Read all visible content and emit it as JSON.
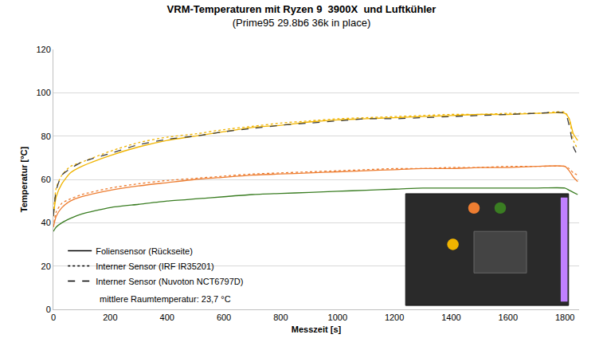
{
  "chart_data": {
    "type": "line",
    "title": "VRM-Temperaturen mit Ryzen 9  3900X  und Luftkühler",
    "subtitle": "(Prime95 29.8b6 36k in place)",
    "x_label": "Messzeit [s]",
    "y_label": "Temperatur [°C]",
    "x": [
      0,
      10,
      30,
      60,
      100,
      200,
      300,
      400,
      500,
      600,
      700,
      800,
      900,
      1000,
      1100,
      1200,
      1300,
      1400,
      1500,
      1600,
      1700,
      1800,
      1815,
      1830,
      1845
    ],
    "series": [
      {
        "color": "#f0b400",
        "line_style": "solid",
        "values": [
          43,
          52,
          58,
          63,
          66,
          71,
          75,
          78,
          80,
          82,
          84,
          85,
          86.5,
          87.5,
          88,
          88.5,
          89,
          89.5,
          90,
          90,
          90.5,
          90.5,
          88,
          81,
          78
        ]
      },
      {
        "color": "#f0b400",
        "line_style": "dotted",
        "values": [
          44,
          56,
          62,
          66,
          68,
          73,
          77,
          79.5,
          81,
          83,
          84.5,
          86,
          87,
          88,
          88.5,
          89,
          89.5,
          90,
          90,
          90.5,
          90.5,
          91,
          88,
          78,
          74
        ]
      },
      {
        "color": "#3c3c3c",
        "line_style": "dashed",
        "values": [
          43,
          55,
          62,
          65,
          68,
          72,
          76,
          78.5,
          80,
          82,
          83.5,
          85,
          86,
          87,
          88,
          88,
          88.5,
          89,
          89.5,
          90,
          90.5,
          90.5,
          85,
          75,
          71
        ]
      },
      {
        "color": "#ed7d31",
        "line_style": "solid",
        "values": [
          38,
          43,
          47,
          50,
          52,
          55,
          57,
          58.5,
          60,
          61,
          62,
          62.5,
          63,
          63.5,
          64,
          64.5,
          65,
          65,
          65.5,
          65.5,
          66,
          66,
          64,
          61,
          59
        ]
      },
      {
        "color": "#ed7d31",
        "line_style": "dotted",
        "values": [
          38,
          45,
          49,
          51,
          53,
          56,
          58,
          59.5,
          60.5,
          61.5,
          62.5,
          63,
          63.5,
          64,
          64.5,
          65,
          65,
          65.5,
          65.5,
          66,
          66,
          66,
          65,
          63,
          62
        ]
      },
      {
        "color": "#3a7d22",
        "line_style": "solid",
        "values": [
          36,
          38,
          40,
          42,
          44,
          47,
          48.5,
          50,
          51,
          52,
          53,
          53.5,
          54,
          54.5,
          55,
          55.5,
          56,
          56,
          56,
          56,
          56,
          56,
          55,
          54,
          53
        ]
      }
    ],
    "legend_items": [
      {
        "name": "Foliensensor (Rückseite)",
        "color": "#000000",
        "line_style": "solid"
      },
      {
        "name": "Interner Sensor (IRF IR35201)",
        "color": "#000000",
        "line_style": "dotted"
      },
      {
        "name": "Interner Sensor (Nuvoton NCT6797D)",
        "color": "#000000",
        "line_style": "dashed"
      }
    ],
    "annotations": [
      "mittlere Raumtemperatur: 23,7 °C"
    ],
    "xlim": [
      0,
      1850
    ],
    "xticks": [
      0,
      200,
      400,
      600,
      800,
      1000,
      1200,
      1400,
      1600,
      1800
    ],
    "ylim": [
      0,
      120
    ],
    "yticks": [
      0,
      20,
      40,
      60,
      80,
      100,
      120
    ],
    "grid": true,
    "legend": "lower left"
  }
}
